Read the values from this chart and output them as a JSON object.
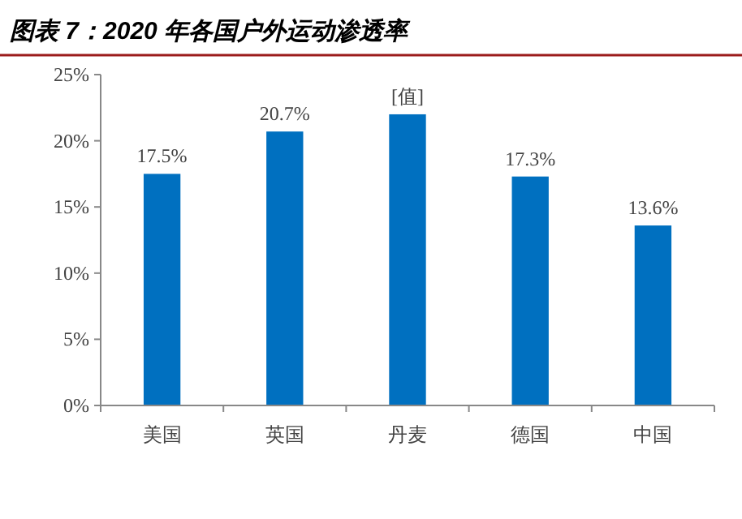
{
  "chart_data": {
    "type": "bar",
    "title": "图表 7：2020 年各国户外运动渗透率",
    "categories": [
      "美国",
      "英国",
      "丹麦",
      "德国",
      "中国"
    ],
    "values": [
      17.5,
      20.7,
      22.0,
      17.3,
      13.6
    ],
    "value_labels": [
      "17.5%",
      "20.7%",
      "[值]",
      "17.3%",
      "13.6%"
    ],
    "color": "#0070c0",
    "ylim": [
      0,
      25
    ],
    "yticks": [
      {
        "value": 0,
        "label": "0%"
      },
      {
        "value": 5,
        "label": "5%"
      },
      {
        "value": 10,
        "label": "10%"
      },
      {
        "value": 15,
        "label": "15%"
      },
      {
        "value": 20,
        "label": "20%"
      },
      {
        "value": 25,
        "label": "25%"
      }
    ],
    "grid": false
  }
}
